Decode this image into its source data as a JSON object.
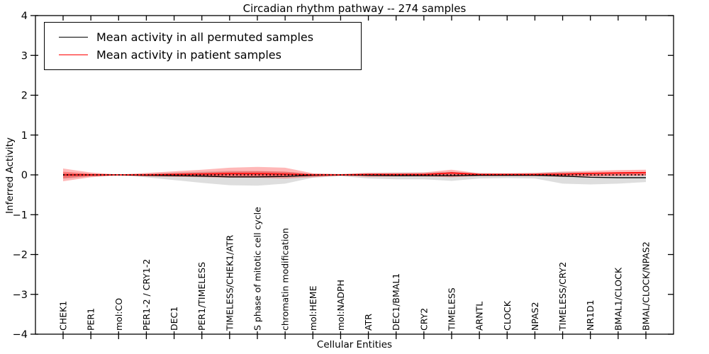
{
  "chart_data": {
    "type": "line",
    "title": "Circadian rhythm pathway -- 274 samples",
    "xlabel": "Cellular Entities",
    "ylabel": "Inferred Activity",
    "ylim": [
      -4,
      4
    ],
    "yticks": [
      4,
      3,
      2,
      1,
      0,
      -1,
      -2,
      -3,
      -4
    ],
    "yticklabels": [
      "4",
      "3",
      "2",
      "1",
      "0",
      "−1",
      "−2",
      "−3",
      "−4"
    ],
    "grid": false,
    "legend_position": "upper left",
    "frame_color": "#000000",
    "background_color": "#ffffff",
    "categories": [
      "CHEK1",
      "PER1",
      "mol:CO",
      "PER1-2 / CRY1-2",
      "DEC1",
      "PER1/TIMELESS",
      "TIMELESS/CHEK1/ATR",
      "S phase of mitotic cell cycle",
      "chromatin modification",
      "mol:HEME",
      "mol:NADPH",
      "ATR",
      "DEC1/BMAL1",
      "CRY2",
      "TIMELESS",
      "ARNTL",
      "CLOCK",
      "NPAS2",
      "TIMELESS/CRY2",
      "NR1D1",
      "BMAL1/CLOCK",
      "BMAL/CLOCK/NPAS2"
    ],
    "series": [
      {
        "name": "Mean activity in all permuted samples",
        "color": "#000000",
        "values": [
          0.0,
          0.0,
          0.0,
          -0.01,
          -0.02,
          -0.03,
          -0.05,
          -0.05,
          -0.04,
          -0.01,
          0.0,
          -0.01,
          -0.02,
          -0.02,
          -0.02,
          -0.01,
          -0.01,
          -0.01,
          -0.03,
          -0.06,
          -0.07,
          -0.07
        ]
      },
      {
        "name": "Mean activity in patient samples",
        "color": "#ff0000",
        "values": [
          0.0,
          0.0,
          0.0,
          0.0,
          0.01,
          0.02,
          0.03,
          0.03,
          0.02,
          0.0,
          0.0,
          0.01,
          0.01,
          0.01,
          0.05,
          0.01,
          0.01,
          0.01,
          0.02,
          0.04,
          0.05,
          0.06
        ]
      }
    ],
    "bands": [
      {
        "name": "permuted-samples-range",
        "color": "#999999",
        "opacity": 0.32,
        "upper": [
          0.05,
          0.02,
          0.01,
          0.03,
          0.06,
          0.08,
          0.1,
          0.1,
          0.08,
          0.03,
          0.02,
          0.05,
          0.06,
          0.06,
          0.08,
          0.05,
          0.04,
          0.05,
          0.08,
          0.06,
          0.05,
          0.06
        ],
        "lower": [
          -0.1,
          -0.04,
          -0.01,
          -0.06,
          -0.13,
          -0.2,
          -0.26,
          -0.27,
          -0.22,
          -0.07,
          -0.03,
          -0.09,
          -0.11,
          -0.11,
          -0.15,
          -0.09,
          -0.08,
          -0.09,
          -0.22,
          -0.24,
          -0.22,
          -0.18
        ]
      },
      {
        "name": "patient-samples-range-outer",
        "color": "#ff0000",
        "opacity": 0.28,
        "upper": [
          0.16,
          0.06,
          0.01,
          0.05,
          0.09,
          0.13,
          0.18,
          0.2,
          0.18,
          0.04,
          0.02,
          0.05,
          0.05,
          0.06,
          0.13,
          0.04,
          0.04,
          0.05,
          0.08,
          0.1,
          0.12,
          0.13
        ],
        "lower": [
          -0.16,
          -0.06,
          -0.01,
          -0.04,
          -0.05,
          -0.06,
          -0.07,
          -0.07,
          -0.09,
          -0.06,
          -0.02,
          -0.05,
          -0.04,
          -0.04,
          -0.06,
          -0.03,
          -0.03,
          -0.03,
          -0.05,
          -0.04,
          -0.03,
          -0.02
        ]
      },
      {
        "name": "patient-samples-range-inner",
        "color": "#ff0000",
        "opacity": 0.3,
        "upper": [
          0.08,
          0.03,
          0.01,
          0.02,
          0.04,
          0.06,
          0.08,
          0.09,
          0.08,
          0.02,
          0.01,
          0.02,
          0.02,
          0.03,
          0.06,
          0.02,
          0.02,
          0.02,
          0.04,
          0.05,
          0.06,
          0.07
        ],
        "lower": [
          -0.08,
          -0.03,
          -0.01,
          -0.02,
          -0.02,
          -0.03,
          -0.03,
          -0.03,
          -0.04,
          -0.03,
          -0.01,
          -0.02,
          -0.02,
          -0.02,
          -0.03,
          -0.01,
          -0.01,
          -0.01,
          -0.02,
          -0.02,
          -0.01,
          -0.01
        ]
      }
    ],
    "zero_line": {
      "value": 0,
      "style": "dotted",
      "color": "#000000"
    }
  }
}
